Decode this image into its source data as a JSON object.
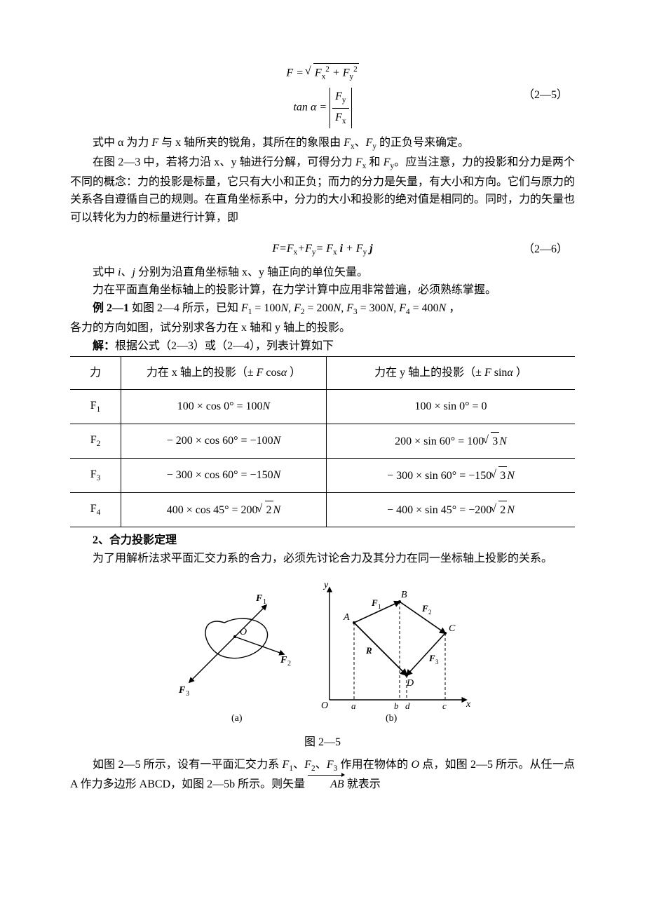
{
  "eq25": {
    "line1_html": "<span class='it'>F</span> = <span class='sqrt'><span class='sqrt-body'><span class='it'>F</span><span class='sub'>x</span><span class='sup'>2</span> + <span class='it'>F</span><span class='sub'>y</span><span class='sup'>2</span></span></span>",
    "line2_html": "tan <span class='it'>α</span> = <span class='abs'><span class='frac'><span class='num'><span class='it'>F</span><span class='sub'>y</span></span><span class='den'><span class='it'>F</span><span class='sub'>x</span></span></span></span>",
    "label": "（2—5）"
  },
  "p1_html": "式中 α 为力 <span class='it'>F</span> 与 x 轴所夹的锐角，其所在的象限由 <span class='it'>F</span><span class='sub'>x</span>、<span class='it'>F</span><span class='sub'>y</span> 的正负号来确定。",
  "p2_html": "在图 2—3 中，若将力沿 x、y 轴进行分解，可得分力 <span class='it'>F</span><span class='sub'>x</span> 和 <span class='it'>F</span><span class='sub'>y</span>。应当注意，力的投影和分力是两个不同的概念：力的投影是标量，它只有大小和正负；而力的分力是矢量，有大小和方向。它们与原力的关系各自遵循自己的规则。在直角坐标系中，分力的大小和投影的绝对值是相同的。同时，力的矢量也可以转化为力的标量进行计算，即",
  "eq26": {
    "html": "<span class='it'>F</span>=<span class='it'>F</span><span class='sub'>x</span>+<span class='it'>F</span><span class='sub'>y</span>= <span class='it'>F</span><span class='sub'>x</span><span class='it' style='font-weight:bold'> i</span> + <span class='it'>F</span><span class='sub'>y</span><span class='it' style='font-weight:bold'> j</span>",
    "label": "（2—6）"
  },
  "p3_html": "式中 <span class='it'>i</span>、<span class='it'>j</span> 分别为沿直角坐标轴 x、y 轴正向的单位矢量。",
  "p4": "力在平面直角坐标轴上的投影计算，在力学计算中应用非常普遍，必须熟练掌握。",
  "example": {
    "label": "例 2—1",
    "text_html": "如图 2—4 所示，已知 <span class='it'>F</span><span class='sub'>1</span> = 100<span class='it'>N</span>, <span class='it'>F</span><span class='sub'>2</span> = 200<span class='it'>N</span>, <span class='it'>F</span><span class='sub'>3</span> = 300<span class='it'>N</span>, <span class='it'>F</span><span class='sub'>4</span> = 400<span class='it'>N</span> ，"
  },
  "p5": "各力的方向如图，试分别求各力在 x 轴和 y 轴上的投影。",
  "solution": {
    "label": "解：",
    "text": "根据公式（2—3）或（2—4），列表计算如下"
  },
  "table": {
    "headers": {
      "c1": "力",
      "c2_html": "力在 x 轴上的投影（± <span class='it'>F</span> cos<span class='it'>α</span> ）",
      "c3_html": "力在 y 轴上的投影（± <span class='it'>F</span> sin<span class='it'>α</span> ）"
    },
    "rows": [
      {
        "f_html": "F<span class='sub'>1</span>",
        "x_html": "100 × cos 0° = 100<span class='it'>N</span>",
        "y_html": "100 × sin 0° = 0"
      },
      {
        "f_html": "F<span class='sub'>2</span>",
        "x_html": "− 200 × cos 60° = −100<span class='it'>N</span>",
        "y_html": "200 × sin 60° = 100<span class='sqrt'><span class='sqrt-body'>3</span></span><span class='it'>N</span>"
      },
      {
        "f_html": "F<span class='sub'>3</span>",
        "x_html": "− 300 × cos 60° = −150<span class='it'>N</span>",
        "y_html": "− 300 × sin 60° = −150<span class='sqrt'><span class='sqrt-body'>3</span></span><span class='it'>N</span>"
      },
      {
        "f_html": "F<span class='sub'>4</span>",
        "x_html": "400 × cos 45° = 200<span class='sqrt'><span class='sqrt-body'>2</span></span><span class='it'>N</span>",
        "y_html": "− 400 × sin 45° = −200<span class='sqrt'><span class='sqrt-body'>2</span></span><span class='it'>N</span>"
      }
    ]
  },
  "sec2_title": "2、合力投影定理",
  "p6": "为了用解析法求平面汇交力系的合力，必须先讨论合力及其分力在同一坐标轴上投影的关系。",
  "figure": {
    "caption": "图 2—5",
    "a_label": "(a)",
    "b_label": "(b)",
    "labels_a": {
      "F1": "F₁",
      "F2": "F₂",
      "F3": "F₃",
      "O": "O"
    },
    "labels_b": {
      "y": "y",
      "x": "x",
      "O": "O",
      "A": "A",
      "B": "B",
      "C": "C",
      "D": "D",
      "F1": "F₁",
      "F2": "F₂",
      "F3": "F₃",
      "R": "R",
      "a": "a",
      "b": "b",
      "d": "d",
      "c": "c"
    },
    "colors": {
      "stroke": "#000000",
      "background": "#ffffff"
    },
    "line_width": 1.2,
    "font_family": "Times New Roman, serif",
    "font_size_pt": 12
  },
  "p7_html": "如图 2—5 所示，设有一平面汇交力系 <span class='it'>F</span><span class='sub'>1</span>、<span class='it'>F</span><span class='sub'>2</span>、<span class='it'>F</span><span class='sub'>3</span> 作用在物体的 <span class='it'>O</span> 点，如图 2—5 所示。从任一点 A 作力多边形 ABCD，如图 2—5b 所示。则矢量 <span class='arrow-over'><span class='it'>AB</span></span> 就表示"
}
